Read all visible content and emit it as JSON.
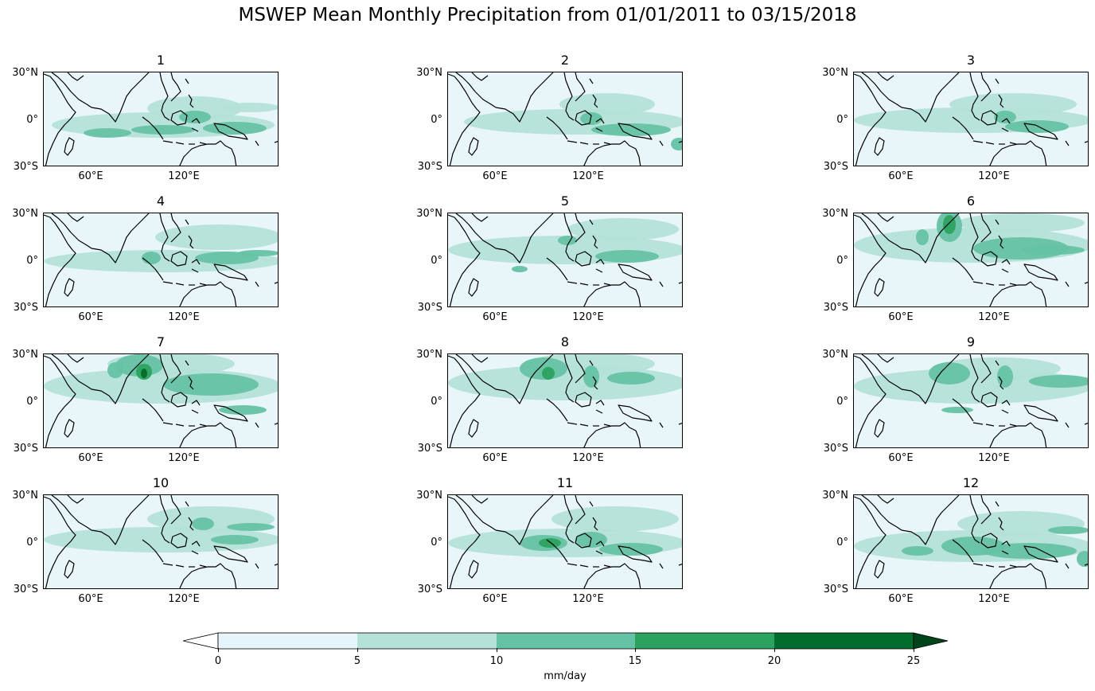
{
  "title": "MSWEP Mean Monthly Precipitation from 01/01/2011 to 03/15/2018",
  "axis_labels": {
    "y": [
      "30°N",
      "0°",
      "30°S"
    ],
    "x": [
      "60°E",
      "120°E"
    ]
  },
  "panels": [
    {
      "title": "1"
    },
    {
      "title": "2"
    },
    {
      "title": "3"
    },
    {
      "title": "4"
    },
    {
      "title": "5"
    },
    {
      "title": "6"
    },
    {
      "title": "7"
    },
    {
      "title": "8"
    },
    {
      "title": "9"
    },
    {
      "title": "10"
    },
    {
      "title": "11"
    },
    {
      "title": "12"
    }
  ],
  "colorbar": {
    "label": "mm/day",
    "ticks": [
      "0",
      "5",
      "10",
      "15",
      "20",
      "25"
    ],
    "colors": [
      "#e5f5f9",
      "#b4e1d8",
      "#66c2a4",
      "#2ca25f",
      "#006d2c"
    ],
    "under_color": "#ffffff",
    "over_color": "#00441b"
  },
  "colors": {
    "background": "#e8f6f9",
    "coast": "#000000"
  }
}
